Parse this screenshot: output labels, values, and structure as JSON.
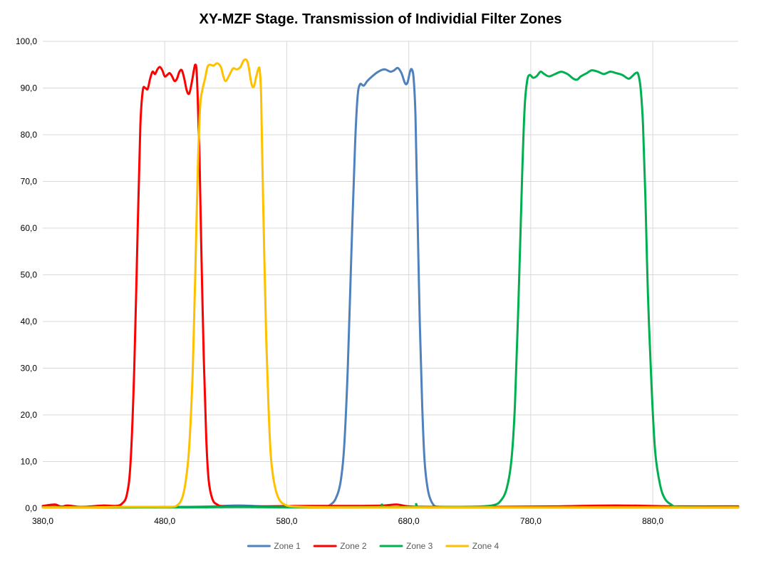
{
  "chart_data": {
    "type": "line",
    "title": "XY-MZF Stage. Transmission of Individial Filter Zones",
    "xlabel": "",
    "ylabel": "",
    "xlim": [
      380,
      950
    ],
    "ylim": [
      0,
      100
    ],
    "x_ticks": [
      380,
      480,
      580,
      680,
      780,
      880
    ],
    "x_tick_labels": [
      "380,0",
      "480,0",
      "580,0",
      "680,0",
      "780,0",
      "880,0"
    ],
    "y_ticks": [
      0,
      10,
      20,
      30,
      40,
      50,
      60,
      70,
      80,
      90,
      100
    ],
    "y_tick_labels": [
      "0,0",
      "10,0",
      "20,0",
      "30,0",
      "40,0",
      "50,0",
      "60,0",
      "70,0",
      "80,0",
      "90,0",
      "100,0"
    ],
    "grid": true,
    "legend_position": "bottom",
    "series": [
      {
        "name": "Zone 1",
        "color": "#4f81bd",
        "points": [
          [
            380,
            0.3
          ],
          [
            390,
            0.5
          ],
          [
            400,
            0.3
          ],
          [
            420,
            0.2
          ],
          [
            450,
            0.2
          ],
          [
            480,
            0.3
          ],
          [
            500,
            0.3
          ],
          [
            520,
            0.4
          ],
          [
            540,
            0.6
          ],
          [
            560,
            0.4
          ],
          [
            580,
            0.3
          ],
          [
            600,
            0.3
          ],
          [
            612,
            0.4
          ],
          [
            616,
            0.8
          ],
          [
            620,
            2.0
          ],
          [
            624,
            5.5
          ],
          [
            627,
            13
          ],
          [
            630,
            30
          ],
          [
            633,
            55
          ],
          [
            636,
            78
          ],
          [
            638,
            88
          ],
          [
            640,
            90.8
          ],
          [
            643,
            90.5
          ],
          [
            646,
            91.5
          ],
          [
            650,
            92.5
          ],
          [
            655,
            93.5
          ],
          [
            660,
            94.0
          ],
          [
            665,
            93.5
          ],
          [
            668,
            93.8
          ],
          [
            671,
            94.3
          ],
          [
            674,
            93.2
          ],
          [
            677,
            91.0
          ],
          [
            679,
            91.2
          ],
          [
            681,
            93.5
          ],
          [
            682.5,
            94.0
          ],
          [
            684,
            92.0
          ],
          [
            685.5,
            84
          ],
          [
            687,
            65
          ],
          [
            689,
            40
          ],
          [
            691,
            22
          ],
          [
            693,
            10
          ],
          [
            696,
            3.5
          ],
          [
            700,
            0.8
          ],
          [
            705,
            0.3
          ],
          [
            720,
            0.2
          ],
          [
            760,
            0.2
          ],
          [
            800,
            0.2
          ],
          [
            850,
            0.2
          ],
          [
            900,
            0.2
          ],
          [
            950,
            0.2
          ]
        ]
      },
      {
        "name": "Zone 2",
        "color": "#ff0000",
        "points": [
          [
            380,
            0.5
          ],
          [
            390,
            0.8
          ],
          [
            395,
            0.3
          ],
          [
            400,
            0.6
          ],
          [
            410,
            0.3
          ],
          [
            420,
            0.4
          ],
          [
            430,
            0.6
          ],
          [
            440,
            0.5
          ],
          [
            445,
            1.0
          ],
          [
            449,
            3.0
          ],
          [
            452,
            10
          ],
          [
            455,
            30
          ],
          [
            458,
            62
          ],
          [
            460,
            82
          ],
          [
            462,
            89.5
          ],
          [
            464,
            90.0
          ],
          [
            466,
            89.8
          ],
          [
            468,
            92.0
          ],
          [
            470,
            93.5
          ],
          [
            472,
            93.0
          ],
          [
            474,
            94.0
          ],
          [
            476,
            94.5
          ],
          [
            478,
            93.8
          ],
          [
            480,
            92.5
          ],
          [
            482,
            92.8
          ],
          [
            484,
            93.2
          ],
          [
            486,
            92.5
          ],
          [
            488,
            91.5
          ],
          [
            490,
            92.0
          ],
          [
            492,
            93.5
          ],
          [
            494,
            93.8
          ],
          [
            496,
            92.0
          ],
          [
            498,
            89.5
          ],
          [
            500,
            88.8
          ],
          [
            502,
            91.0
          ],
          [
            504,
            94.0
          ],
          [
            505,
            95.0
          ],
          [
            506,
            94.0
          ],
          [
            507,
            88
          ],
          [
            508.5,
            75
          ],
          [
            510,
            55
          ],
          [
            512,
            32
          ],
          [
            514,
            15
          ],
          [
            516,
            6
          ],
          [
            519,
            2.0
          ],
          [
            523,
            0.8
          ],
          [
            530,
            0.4
          ],
          [
            560,
            0.4
          ],
          [
            600,
            0.5
          ],
          [
            640,
            0.5
          ],
          [
            660,
            0.6
          ],
          [
            670,
            0.8
          ],
          [
            680,
            0.4
          ],
          [
            700,
            0.3
          ],
          [
            750,
            0.3
          ],
          [
            800,
            0.4
          ],
          [
            850,
            0.6
          ],
          [
            900,
            0.4
          ],
          [
            950,
            0.4
          ]
        ]
      },
      {
        "name": "Zone 3",
        "color": "#00b050",
        "points": [
          [
            380,
            0.2
          ],
          [
            420,
            0.2
          ],
          [
            460,
            0.2
          ],
          [
            500,
            0.2
          ],
          [
            540,
            0.3
          ],
          [
            580,
            0.2
          ],
          [
            620,
            0.2
          ],
          [
            655,
            0.3
          ],
          [
            658,
            0.8
          ],
          [
            661,
            0.3
          ],
          [
            684,
            0.3
          ],
          [
            686,
            0.9
          ],
          [
            688,
            0.3
          ],
          [
            700,
            0.2
          ],
          [
            720,
            0.3
          ],
          [
            740,
            0.4
          ],
          [
            750,
            0.7
          ],
          [
            755,
            1.5
          ],
          [
            760,
            4.0
          ],
          [
            764,
            10
          ],
          [
            767,
            22
          ],
          [
            770,
            45
          ],
          [
            773,
            72
          ],
          [
            775,
            86
          ],
          [
            777,
            91.5
          ],
          [
            779,
            92.8
          ],
          [
            782,
            92.2
          ],
          [
            785,
            92.6
          ],
          [
            788,
            93.5
          ],
          [
            791,
            93.0
          ],
          [
            795,
            92.5
          ],
          [
            800,
            93.0
          ],
          [
            805,
            93.5
          ],
          [
            810,
            93.0
          ],
          [
            815,
            92.0
          ],
          [
            818,
            91.8
          ],
          [
            821,
            92.5
          ],
          [
            826,
            93.2
          ],
          [
            830,
            93.8
          ],
          [
            835,
            93.5
          ],
          [
            840,
            93.0
          ],
          [
            845,
            93.5
          ],
          [
            850,
            93.2
          ],
          [
            855,
            92.8
          ],
          [
            860,
            92.0
          ],
          [
            863,
            92.5
          ],
          [
            866,
            93.2
          ],
          [
            868,
            93.0
          ],
          [
            870,
            90
          ],
          [
            872,
            82
          ],
          [
            874,
            66
          ],
          [
            876,
            46
          ],
          [
            879,
            26
          ],
          [
            882,
            12
          ],
          [
            886,
            5.0
          ],
          [
            890,
            2.0
          ],
          [
            895,
            0.8
          ],
          [
            900,
            0.3
          ],
          [
            920,
            0.2
          ],
          [
            950,
            0.2
          ]
        ]
      },
      {
        "name": "Zone 4",
        "color": "#ffc000",
        "points": [
          [
            380,
            0.2
          ],
          [
            420,
            0.2
          ],
          [
            450,
            0.3
          ],
          [
            470,
            0.3
          ],
          [
            485,
            0.3
          ],
          [
            490,
            0.6
          ],
          [
            494,
            2.0
          ],
          [
            497,
            5.5
          ],
          [
            500,
            13
          ],
          [
            503,
            30
          ],
          [
            505,
            50
          ],
          [
            507,
            72
          ],
          [
            509,
            86
          ],
          [
            511,
            89.8
          ],
          [
            513,
            92.0
          ],
          [
            515,
            94.5
          ],
          [
            517,
            95.0
          ],
          [
            520,
            94.8
          ],
          [
            523,
            95.3
          ],
          [
            526,
            94.5
          ],
          [
            528,
            92.5
          ],
          [
            530,
            91.5
          ],
          [
            533,
            92.8
          ],
          [
            536,
            94.2
          ],
          [
            539,
            94.0
          ],
          [
            542,
            94.5
          ],
          [
            545,
            96.0
          ],
          [
            548,
            95.5
          ],
          [
            551,
            91.0
          ],
          [
            553,
            90.3
          ],
          [
            555,
            92.5
          ],
          [
            557,
            94.3
          ],
          [
            558,
            93.5
          ],
          [
            559,
            88
          ],
          [
            560,
            74
          ],
          [
            561.5,
            55
          ],
          [
            563,
            38
          ],
          [
            565,
            22
          ],
          [
            567,
            11
          ],
          [
            570,
            5.0
          ],
          [
            574,
            1.8
          ],
          [
            580,
            0.6
          ],
          [
            590,
            0.3
          ],
          [
            620,
            0.2
          ],
          [
            700,
            0.2
          ],
          [
            800,
            0.2
          ],
          [
            900,
            0.2
          ],
          [
            950,
            0.2
          ]
        ]
      }
    ]
  }
}
